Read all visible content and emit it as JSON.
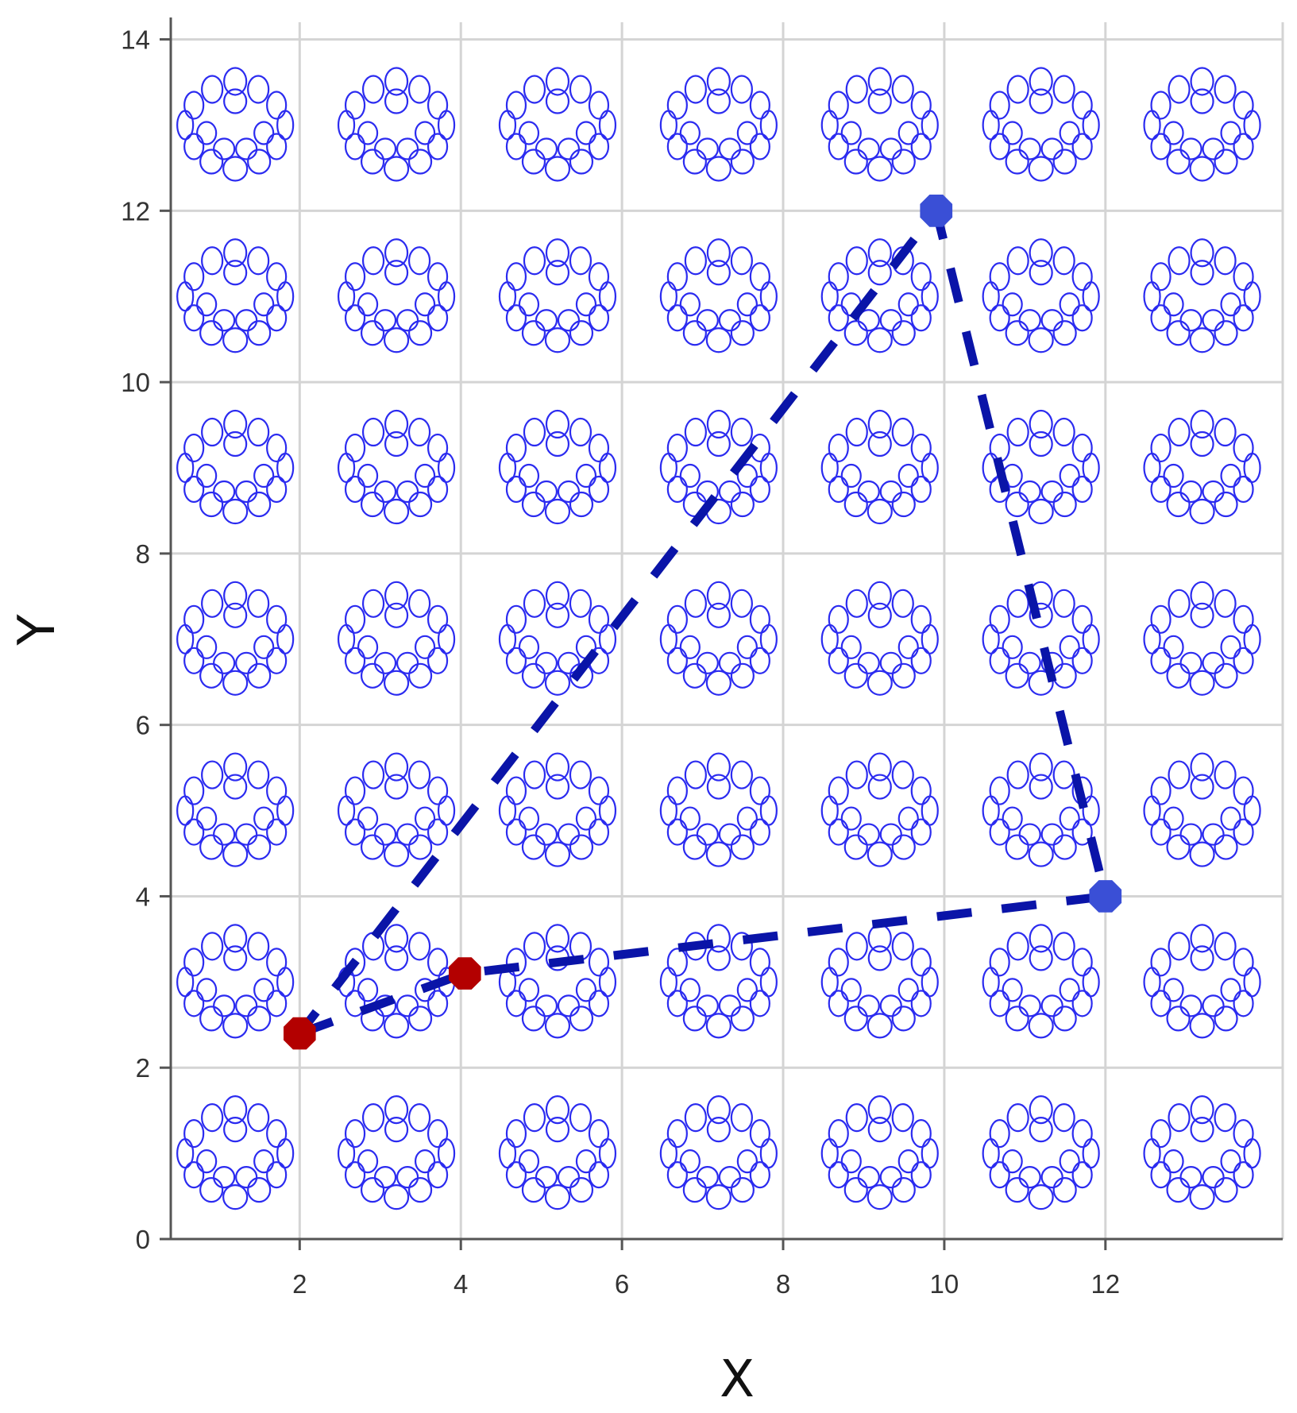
{
  "chart_data": {
    "type": "scatter",
    "title": "",
    "xlabel": "X",
    "ylabel": "Y",
    "xlim": [
      0.4,
      14.2
    ],
    "ylim": [
      0,
      14.2
    ],
    "x_ticks": [
      2,
      4,
      6,
      8,
      10,
      12
    ],
    "y_ticks": [
      0,
      2,
      4,
      6,
      8,
      10,
      12,
      14
    ],
    "grid": true,
    "legend": "none",
    "background_icon": "nanotube-ring-icon",
    "background_icon_centers": {
      "x": [
        1.2,
        3.2,
        5.2,
        7.2,
        9.2,
        11.2,
        13.2
      ],
      "y": [
        1,
        3,
        5,
        7,
        9,
        11,
        13
      ]
    },
    "colors": {
      "icon": "#2b2bf0",
      "path": "#0a14a8",
      "start_nodes": "#b30000",
      "end_nodes": "#3a4fd6"
    },
    "series": [
      {
        "style": "dashed",
        "points": [
          [
            2.0,
            2.4
          ],
          [
            4.05,
            3.1
          ],
          [
            12.0,
            4.0
          ],
          [
            9.9,
            12.0
          ],
          [
            2.0,
            2.4
          ]
        ]
      }
    ],
    "markers": [
      {
        "x": 2.0,
        "y": 2.4,
        "shape": "octagon",
        "color": "#b30000"
      },
      {
        "x": 4.05,
        "y": 3.1,
        "shape": "octagon",
        "color": "#b30000"
      },
      {
        "x": 12.0,
        "y": 4.0,
        "shape": "octagon",
        "color": "#3a4fd6"
      },
      {
        "x": 9.9,
        "y": 12.0,
        "shape": "octagon",
        "color": "#3a4fd6"
      }
    ]
  }
}
